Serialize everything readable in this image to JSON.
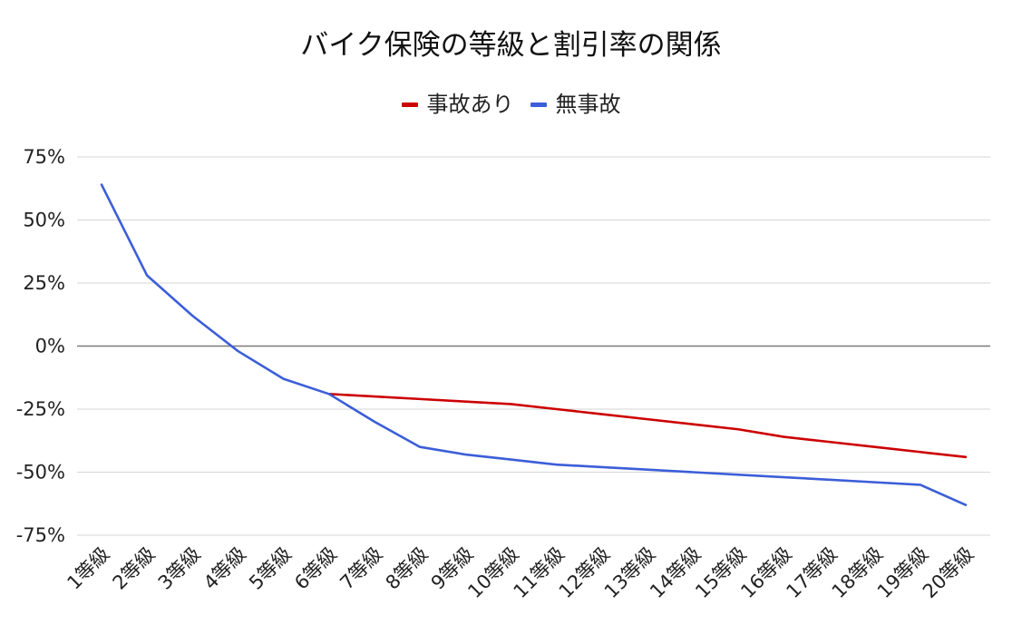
{
  "chart_data": {
    "type": "line",
    "title": "バイク保険の等級と割引率の関係",
    "xlabel": "",
    "ylabel": "",
    "ylim": [
      -75,
      75
    ],
    "yticks": [
      75,
      50,
      25,
      0,
      -25,
      -50,
      -75
    ],
    "ytick_labels": [
      "75%",
      "50%",
      "25%",
      "0%",
      "-25%",
      "-50%",
      "-75%"
    ],
    "categories": [
      "1等級",
      "2等級",
      "3等級",
      "4等級",
      "5等級",
      "6等級",
      "7等級",
      "8等級",
      "9等級",
      "10等級",
      "11等級",
      "12等級",
      "13等級",
      "14等級",
      "15等級",
      "16等級",
      "17等級",
      "18等級",
      "19等級",
      "20等級"
    ],
    "series": [
      {
        "name": "事故あり",
        "color": "#cc0000",
        "values": [
          null,
          null,
          null,
          null,
          null,
          -19,
          -20,
          -21,
          -22,
          -23,
          -25,
          -27,
          -29,
          -31,
          -33,
          -36,
          -38,
          -40,
          -42,
          -44
        ]
      },
      {
        "name": "無事故",
        "color": "#3c5ed8",
        "values": [
          64,
          28,
          12,
          -2,
          -13,
          -19,
          -30,
          -40,
          -43,
          -45,
          -47,
          -48,
          -49,
          -50,
          -51,
          -52,
          -53,
          -54,
          -55,
          -63
        ]
      }
    ],
    "grid": true,
    "legend_position": "top-center"
  }
}
